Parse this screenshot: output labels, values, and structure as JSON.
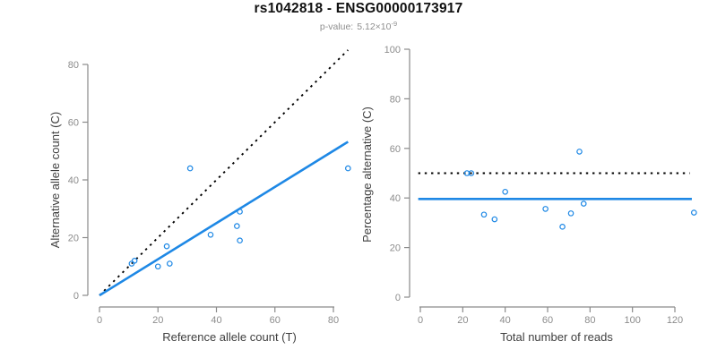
{
  "header": {
    "title": "rs1042818 - ENSG00000173917",
    "pvalue_label": "p-value:",
    "pvalue_mantissa": "5.12×10",
    "pvalue_exponent": "-9"
  },
  "colors": {
    "blue": "#1E88E5",
    "black": "#000000",
    "axis_gray": "#8a8a8a",
    "tick_label_gray": "#8c8c8c",
    "axis_title_gray": "#3f3f3f"
  },
  "chart_data": [
    {
      "type": "scatter",
      "title": "",
      "xlabel": "Reference allele count (T)",
      "ylabel": "Alternative allele count (C)",
      "xlim": [
        0,
        85
      ],
      "ylim": [
        0,
        85
      ],
      "xticks": [
        0,
        20,
        40,
        60,
        80
      ],
      "yticks": [
        0,
        20,
        40,
        60,
        80
      ],
      "grid": false,
      "points": [
        [
          11,
          11
        ],
        [
          12,
          12
        ],
        [
          20,
          10
        ],
        [
          23,
          17
        ],
        [
          24,
          11
        ],
        [
          31,
          44
        ],
        [
          38,
          21
        ],
        [
          47,
          24
        ],
        [
          48,
          19
        ],
        [
          48,
          29
        ],
        [
          85,
          44
        ]
      ],
      "lines": [
        {
          "name": "identity-line",
          "style": "dotted",
          "color": "black",
          "from": [
            0,
            0
          ],
          "to": [
            85,
            85
          ]
        },
        {
          "name": "fit-line",
          "style": "solid",
          "color": "blue",
          "from": [
            0,
            0
          ],
          "to": [
            85,
            53.2
          ]
        }
      ]
    },
    {
      "type": "scatter",
      "title": "",
      "xlabel": "Total number of reads",
      "ylabel": "Percentage alternative (C)",
      "xlim": [
        0,
        129
      ],
      "ylim": [
        0,
        100
      ],
      "xticks": [
        0,
        20,
        40,
        60,
        80,
        100,
        120
      ],
      "yticks": [
        0,
        20,
        40,
        60,
        80,
        100
      ],
      "grid": false,
      "points": [
        [
          22,
          50
        ],
        [
          24,
          50
        ],
        [
          30,
          33.3
        ],
        [
          35,
          31.4
        ],
        [
          40,
          42.5
        ],
        [
          59,
          35.6
        ],
        [
          67,
          28.4
        ],
        [
          71,
          33.8
        ],
        [
          75,
          58.7
        ],
        [
          77,
          37.7
        ],
        [
          129,
          34.1
        ]
      ],
      "lines": [
        {
          "name": "expected-50pct-line",
          "style": "dotted",
          "color": "black",
          "from": [
            -1,
            50
          ],
          "to": [
            127,
            50
          ]
        },
        {
          "name": "mean-line",
          "style": "solid",
          "color": "blue",
          "from": [
            -1,
            39.6
          ],
          "to": [
            128,
            39.6
          ]
        }
      ]
    }
  ]
}
